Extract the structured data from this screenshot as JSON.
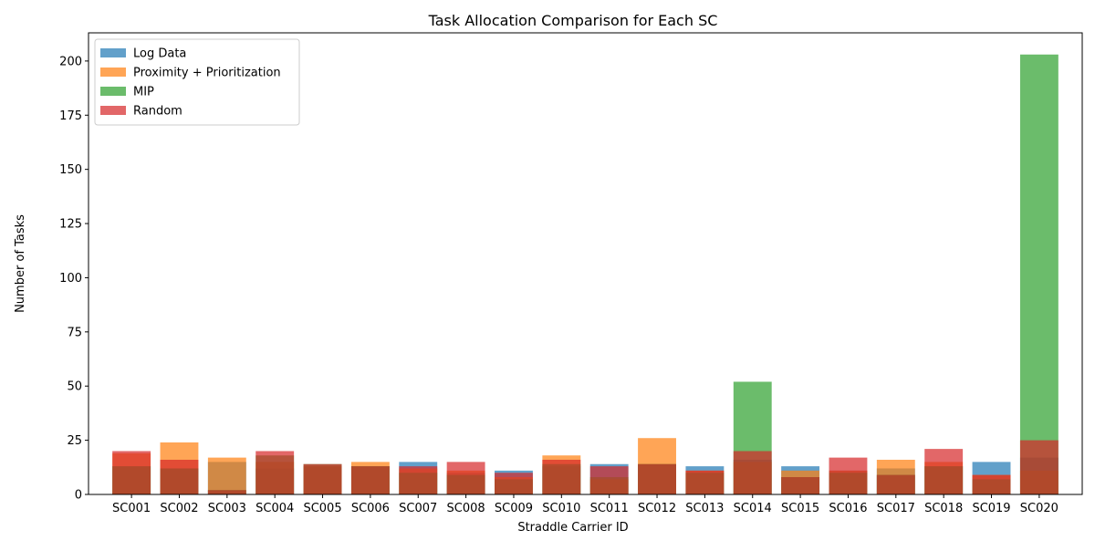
{
  "chart_data": {
    "type": "bar",
    "title": "Task Allocation Comparison for Each SC",
    "xlabel": "Straddle Carrier ID",
    "ylabel": "Number of Tasks",
    "ylim": [
      0,
      213
    ],
    "yticks": [
      0,
      25,
      50,
      75,
      100,
      125,
      150,
      175,
      200
    ],
    "legend_position": "upper-left",
    "overlay": true,
    "bar_alpha": 0.7,
    "categories": [
      "SC001",
      "SC002",
      "SC003",
      "SC004",
      "SC005",
      "SC006",
      "SC007",
      "SC008",
      "SC009",
      "SC010",
      "SC011",
      "SC012",
      "SC013",
      "SC014",
      "SC015",
      "SC016",
      "SC017",
      "SC018",
      "SC019",
      "SC020"
    ],
    "series": [
      {
        "name": "Log Data",
        "color": "#1f77b4",
        "values": [
          13,
          12,
          15,
          12,
          13,
          13,
          15,
          10,
          11,
          13,
          14,
          14,
          13,
          16,
          13,
          11,
          12,
          13,
          15,
          17
        ]
      },
      {
        "name": "Proximity + Prioritization",
        "color": "#ff7f0e",
        "values": [
          19,
          24,
          17,
          15,
          13,
          15,
          12,
          11,
          8,
          18,
          7,
          26,
          11,
          15,
          11,
          11,
          16,
          15,
          9,
          11
        ]
      },
      {
        "name": "MIP",
        "color": "#2ca02c",
        "values": [
          13,
          12,
          2,
          18,
          14,
          13,
          10,
          9,
          7,
          14,
          8,
          14,
          10,
          52,
          8,
          10,
          9,
          13,
          7,
          203
        ]
      },
      {
        "name": "Random",
        "color": "#d62728",
        "values": [
          20,
          16,
          2,
          20,
          14,
          13,
          13,
          15,
          10,
          16,
          13,
          14,
          11,
          20,
          8,
          17,
          9,
          21,
          9,
          25
        ]
      }
    ]
  }
}
